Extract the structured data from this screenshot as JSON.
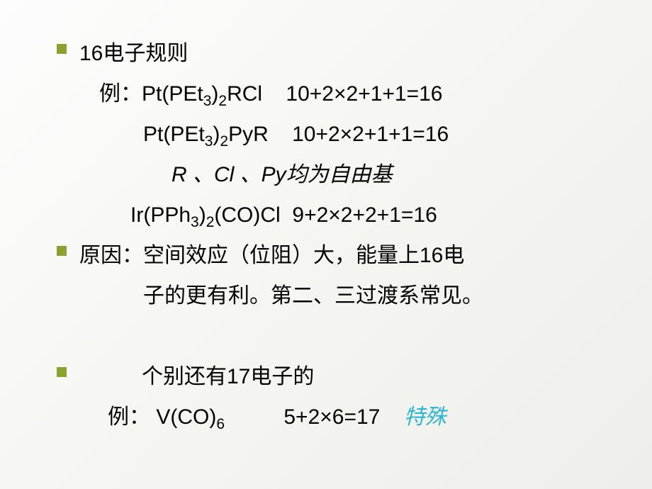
{
  "slide": {
    "background_gradient": [
      "#fdfdfd",
      "#eeeeea"
    ],
    "bullet_color": "#8aa030",
    "text_color": "#000000",
    "special_color": "#2bb6d6",
    "font_size_pt": 30,
    "lines": [
      {
        "bullet": true,
        "indent": 0,
        "parts": [
          {
            "t": "16电子规则"
          }
        ]
      },
      {
        "bullet": false,
        "indent": 28,
        "parts": [
          {
            "t": "例：Pt(PEt"
          },
          {
            "t": "3",
            "sub": true
          },
          {
            "t": ")"
          },
          {
            "t": "2",
            "sub": true
          },
          {
            "t": "RCl    10+2×2+1+1=16"
          }
        ]
      },
      {
        "bullet": false,
        "indent": 90,
        "parts": [
          {
            "t": "Pt(PEt"
          },
          {
            "t": "3",
            "sub": true
          },
          {
            "t": ")"
          },
          {
            "t": "2",
            "sub": true
          },
          {
            "t": "PyR    10+2×2+1+1=16"
          }
        ]
      },
      {
        "bullet": false,
        "indent": 130,
        "parts": [
          {
            "t": "R 、Cl 、Py均为自由基",
            "italic": true
          }
        ]
      },
      {
        "bullet": false,
        "indent": 72,
        "parts": [
          {
            "t": "Ir(PPh"
          },
          {
            "t": "3",
            "sub": true
          },
          {
            "t": ")"
          },
          {
            "t": "2",
            "sub": true
          },
          {
            "t": "(CO)Cl  9+2×2+2+1=16"
          }
        ]
      },
      {
        "bullet": true,
        "indent": 0,
        "parts": [
          {
            "t": "原因：空间效应（位阻）大，能量上16电"
          }
        ]
      },
      {
        "bullet": false,
        "indent": 90,
        "parts": [
          {
            "t": "子的更有利。第二、三过渡系常见。"
          }
        ]
      },
      {
        "bullet": false,
        "indent": 0,
        "parts": [
          {
            "t": " "
          }
        ]
      },
      {
        "bullet": true,
        "indent": 88,
        "parts": [
          {
            "t": "个别还有17电子的"
          }
        ]
      },
      {
        "bullet": false,
        "indent": 40,
        "parts": [
          {
            "t": "例： V(CO)"
          },
          {
            "t": "6",
            "sub": true
          },
          {
            "t": "          5+2×6=17    "
          },
          {
            "t": "特殊",
            "special": true
          }
        ]
      }
    ]
  }
}
